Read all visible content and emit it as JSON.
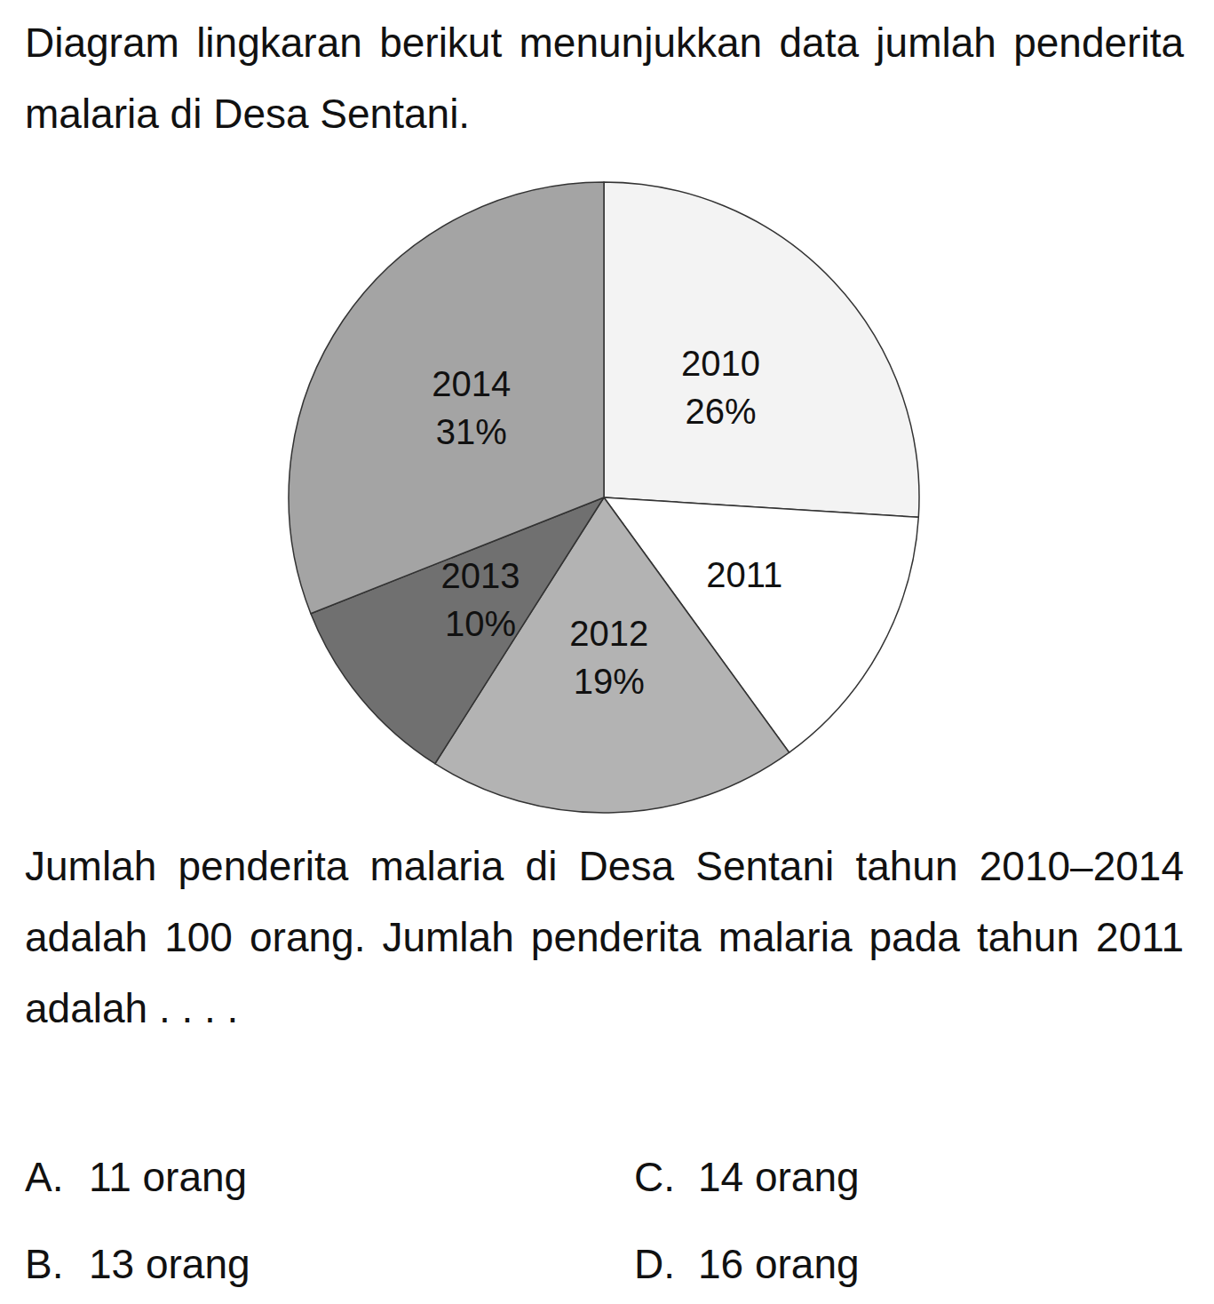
{
  "intro": "Diagram lingkaran berikut menunjukkan data jumlah penderita malaria di Desa Sentani.",
  "chart_data": {
    "type": "pie",
    "categories": [
      "2010",
      "2011",
      "2012",
      "2013",
      "2014"
    ],
    "values": [
      26,
      14,
      19,
      10,
      31
    ],
    "value_labels": [
      "26%",
      null,
      "19%",
      "10%",
      "31%"
    ],
    "colors": [
      "#f3f3f3",
      "#ffffff",
      "#b3b3b3",
      "#707070",
      "#a4a4a4"
    ],
    "data_labels": true
  },
  "question": "Jumlah penderita malaria di Desa Sentani tahun 2010–2014 adalah 100 orang. Jumlah penderita malaria pada tahun 2011 adalah . . . .",
  "options": [
    {
      "letter": "A.",
      "text": "11 orang"
    },
    {
      "letter": "B.",
      "text": "13 orang"
    },
    {
      "letter": "C.",
      "text": "14 orang"
    },
    {
      "letter": "D.",
      "text": "16 orang"
    }
  ]
}
